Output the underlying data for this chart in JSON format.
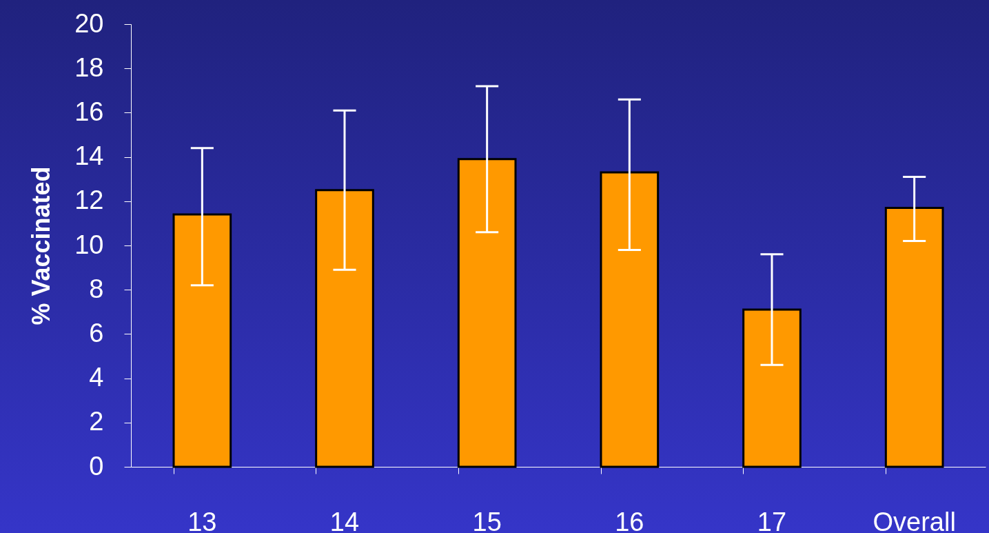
{
  "chart_data": {
    "type": "bar",
    "ylabel": "% Vaccinated",
    "categories": [
      "13",
      "14",
      "15",
      "16",
      "17",
      "Overall"
    ],
    "values": [
      11.4,
      12.5,
      13.9,
      13.3,
      7.1,
      11.7
    ],
    "errors": [
      [
        8.2,
        14.4
      ],
      [
        8.9,
        16.1
      ],
      [
        10.6,
        17.2
      ],
      [
        9.8,
        16.6
      ],
      [
        4.6,
        9.6
      ],
      [
        10.2,
        13.1
      ]
    ],
    "color": "#ff9900",
    "ylim": [
      0,
      20
    ],
    "yticks": [
      0,
      2,
      4,
      6,
      8,
      10,
      12,
      14,
      16,
      18,
      20
    ],
    "grid": false
  }
}
